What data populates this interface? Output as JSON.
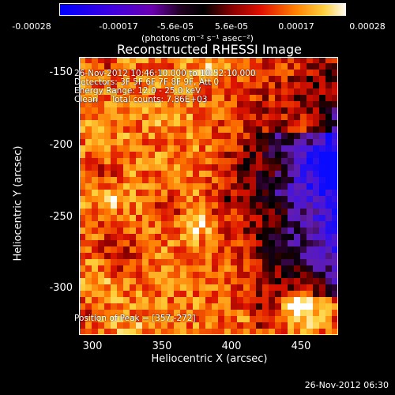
{
  "colorbar": {
    "ticks": [
      "-0.00028",
      "-0.00017",
      "-5.6e-05",
      "5.6e-05",
      "0.00017",
      "0.00028"
    ],
    "units": "(photons cm⁻² s⁻¹ asec⁻²)",
    "colors": [
      "#1010ff",
      "#6a00d0",
      "#2a0010",
      "#c80000",
      "#ff8c00",
      "#ffffff"
    ]
  },
  "title": "Reconstructed RHESSI Image",
  "annotations": {
    "line1": "26-Nov-2012 10:46:10.000 to 10:52:10.000",
    "line2": "Detectors: 3F 5F 6F 7F 8F 9F, Att 0",
    "line3": "Energy Range: 12.0 - 25.0 keV",
    "line4": "Clean     Total counts: 7.86E+03",
    "peak": "Position of Peak = [357,-272]"
  },
  "axes": {
    "xlabel": "Heliocentric X (arcsec)",
    "ylabel": "Heliocentric Y (arcsec)",
    "xticks": [
      "300",
      "350",
      "400",
      "450"
    ],
    "yticks": [
      "-150",
      "-200",
      "-250",
      "-300"
    ]
  },
  "timestamp": "26-Nov-2012 06:30"
}
